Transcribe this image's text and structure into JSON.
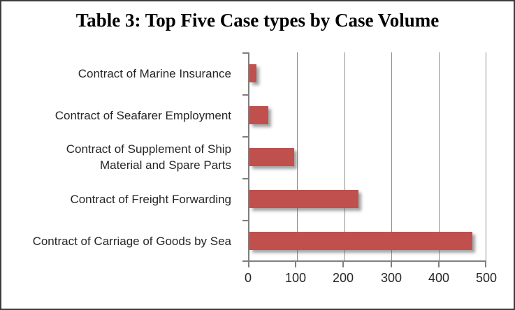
{
  "title": "Table 3: Top Five Case types by Case Volume",
  "chart_data": {
    "type": "bar",
    "orientation": "horizontal",
    "title": "Table 3: Top Five Case types by Case Volume",
    "categories": [
      "Contract of Marine Insurance",
      "Contract of Seafarer Employment",
      "Contract of Supplement of Ship\nMaterial and Spare Parts",
      "Contract of Freight Forwarding",
      "Contract of Carriage of Goods by Sea"
    ],
    "values": [
      15,
      40,
      95,
      230,
      470
    ],
    "xlabel": "",
    "ylabel": "",
    "xlim": [
      0,
      500
    ],
    "x_ticks": [
      0,
      100,
      200,
      300,
      400,
      500
    ],
    "grid": true,
    "legend": false,
    "bar_color": "#C0504D",
    "gridline_color": "#8c8c8c",
    "axis_color": "#7f7f7f",
    "text_color": "#262626"
  }
}
